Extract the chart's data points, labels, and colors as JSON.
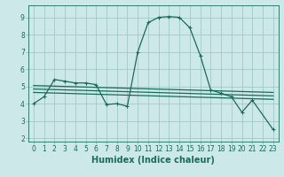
{
  "title": "",
  "xlabel": "Humidex (Indice chaleur)",
  "bg_color": "#cce8e8",
  "grid_color": "#a0c8c8",
  "line_color": "#1a6b5a",
  "xlim": [
    -0.5,
    23.5
  ],
  "ylim": [
    1.8,
    9.7
  ],
  "yticks": [
    2,
    3,
    4,
    5,
    6,
    7,
    8,
    9
  ],
  "xticks": [
    0,
    1,
    2,
    3,
    4,
    5,
    6,
    7,
    8,
    9,
    10,
    11,
    12,
    13,
    14,
    15,
    16,
    17,
    18,
    19,
    20,
    21,
    22,
    23
  ],
  "series1_x": [
    0,
    1,
    2,
    3,
    4,
    5,
    6,
    7,
    8,
    9,
    10,
    11,
    12,
    13,
    14,
    15,
    16,
    17,
    18,
    19,
    20,
    21,
    23
  ],
  "series1_y": [
    4.0,
    4.4,
    5.4,
    5.3,
    5.2,
    5.2,
    5.1,
    3.95,
    4.0,
    3.85,
    7.0,
    8.7,
    9.0,
    9.05,
    9.0,
    8.4,
    6.8,
    4.8,
    4.6,
    4.4,
    3.5,
    4.2,
    2.5
  ],
  "series2_x": [
    0,
    23
  ],
  "series2_y": [
    5.05,
    4.65
  ],
  "series3_x": [
    0,
    23
  ],
  "series3_y": [
    4.85,
    4.45
  ],
  "series4_x": [
    0,
    23
  ],
  "series4_y": [
    4.65,
    4.25
  ],
  "tick_fontsize": 5.5,
  "xlabel_fontsize": 7,
  "lw": 0.9,
  "marker_size": 2.5
}
